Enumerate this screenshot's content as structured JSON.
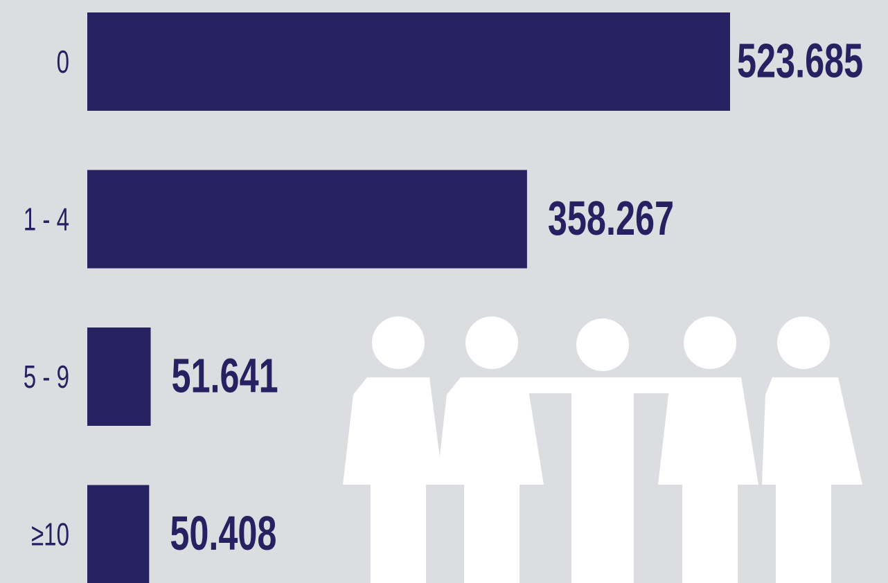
{
  "chart_data": {
    "type": "bar",
    "orientation": "horizontal",
    "categories": [
      "0",
      "1 - 4",
      "5 - 9",
      "≥10"
    ],
    "values": [
      523685,
      358267,
      51641,
      50408
    ],
    "value_labels": [
      "523.685",
      "358.267",
      "51.641",
      "50.408"
    ],
    "color": "#262262"
  }
}
